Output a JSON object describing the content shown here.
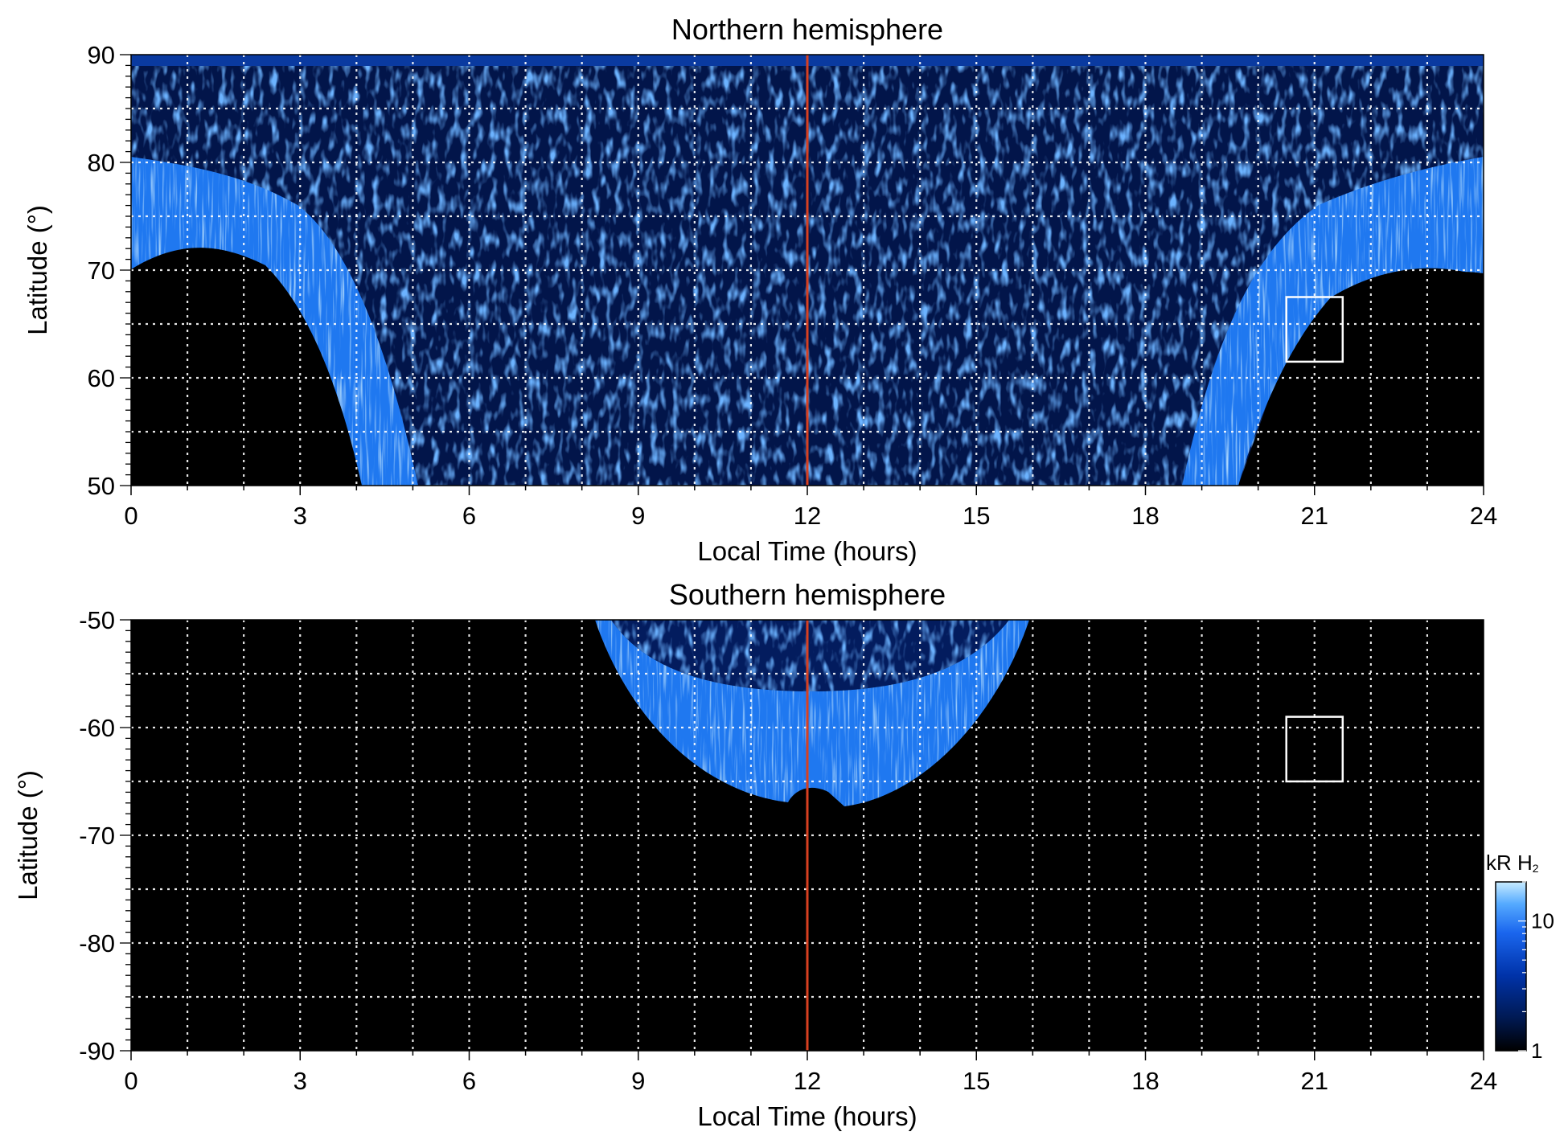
{
  "chart_data": [
    {
      "type": "heatmap",
      "title": "Northern hemisphere",
      "xlabel": "Local Time (hours)",
      "ylabel": "Latitude (°)",
      "xlim": [
        0,
        24
      ],
      "ylim": [
        50,
        90
      ],
      "xticks": [
        0,
        3,
        6,
        9,
        12,
        15,
        18,
        21,
        24
      ],
      "yticks": [
        50,
        60,
        70,
        80,
        90
      ],
      "x_gridlines": [
        1,
        2,
        3,
        4,
        5,
        6,
        7,
        8,
        9,
        10,
        11,
        13,
        14,
        15,
        16,
        17,
        18,
        19,
        20,
        21,
        22,
        23
      ],
      "y_gridlines": [
        55,
        60,
        65,
        70,
        75,
        80,
        85
      ],
      "grid": true,
      "noon_line": 12,
      "box": {
        "x": [
          20.5,
          21.5
        ],
        "y": [
          61.5,
          67.5
        ]
      },
      "auroral_oval_center_latitude": [
        {
          "local_time": 0,
          "latitude": 77
        },
        {
          "local_time": 3,
          "latitude": 73
        },
        {
          "local_time": 4.5,
          "latitude": 58
        },
        {
          "local_time": 19.5,
          "latitude": 58
        },
        {
          "local_time": 21,
          "latitude": 72
        },
        {
          "local_time": 24,
          "latitude": 77
        }
      ],
      "no_data_region": "black area below the auroral oval on the nightside (LT 0–5 and 20–24)"
    },
    {
      "type": "heatmap",
      "title": "Southern hemisphere",
      "xlabel": "Local Time (hours)",
      "ylabel": "Latitude (°)",
      "xlim": [
        0,
        24
      ],
      "ylim": [
        -90,
        -50
      ],
      "xticks": [
        0,
        3,
        6,
        9,
        12,
        15,
        18,
        21,
        24
      ],
      "yticks": [
        -50,
        -60,
        -70,
        -80,
        -90
      ],
      "x_gridlines": [
        1,
        2,
        3,
        4,
        5,
        6,
        7,
        8,
        9,
        10,
        11,
        13,
        14,
        15,
        16,
        17,
        18,
        19,
        20,
        21,
        22,
        23
      ],
      "y_gridlines": [
        -55,
        -60,
        -65,
        -70,
        -75,
        -80,
        -85
      ],
      "grid": true,
      "noon_line": 12,
      "box": {
        "x": [
          20.5,
          21.5
        ],
        "y": [
          -65,
          -59
        ]
      },
      "auroral_oval_center_latitude": [
        {
          "local_time": 8.5,
          "latitude": -50
        },
        {
          "local_time": 10,
          "latitude": -57
        },
        {
          "local_time": 12,
          "latitude": -60
        },
        {
          "local_time": 14,
          "latitude": -57
        },
        {
          "local_time": 16,
          "latitude": -50
        }
      ]
    }
  ],
  "colorbar": {
    "title_main": "kR H",
    "title_sub": "2",
    "scale": "log",
    "range": [
      1,
      20
    ],
    "tick_labels": [
      "1",
      "10"
    ],
    "tick_values": [
      1,
      10
    ],
    "colors": [
      "#000000",
      "#001a55",
      "#0033aa",
      "#1a66ee",
      "#55aaff",
      "#c8ebff"
    ]
  },
  "noon_line_color": "#d84020"
}
